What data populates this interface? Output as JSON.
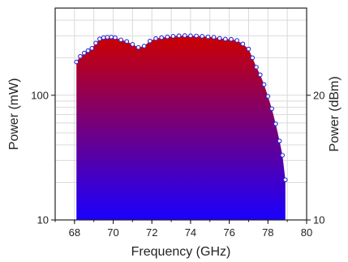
{
  "chart_data": {
    "type": "area",
    "xlabel": "Frequency (GHz)",
    "ylabel": "Power (mW)",
    "y2label": "Power (dBm)",
    "xlim": [
      67,
      80
    ],
    "ylim": [
      10,
      500
    ],
    "yscale": "log",
    "grid": true,
    "xticks": [
      68,
      70,
      72,
      74,
      76,
      78,
      80
    ],
    "yticks": [
      10,
      100
    ],
    "y2ticks": [
      10,
      20
    ],
    "fill_gradient": {
      "top": "#cc0000",
      "bottom": "#1a00ff"
    },
    "marker_color": "#2b2bd6",
    "series": [
      {
        "x": [
          68.1,
          68.3,
          68.5,
          68.7,
          68.9,
          69.1,
          69.3,
          69.5,
          69.7,
          69.9,
          70.1,
          70.4,
          70.7,
          71.0,
          71.3,
          71.6,
          71.9,
          72.2,
          72.5,
          72.8,
          73.1,
          73.4,
          73.7,
          74.0,
          74.3,
          74.6,
          74.9,
          75.2,
          75.5,
          75.8,
          76.1,
          76.4,
          76.7,
          77.0,
          77.2,
          77.4,
          77.6,
          77.8,
          78.0,
          78.2,
          78.4,
          78.6,
          78.75,
          78.9
        ],
        "y": [
          185,
          205,
          218,
          228,
          238,
          262,
          283,
          290,
          292,
          293,
          290,
          278,
          270,
          256,
          242,
          248,
          272,
          285,
          290,
          294,
          297,
          300,
          301,
          300,
          299,
          297,
          294,
          292,
          286,
          282,
          281,
          275,
          258,
          235,
          200,
          168,
          146,
          122,
          98,
          78,
          59,
          43,
          33,
          21
        ]
      }
    ]
  }
}
